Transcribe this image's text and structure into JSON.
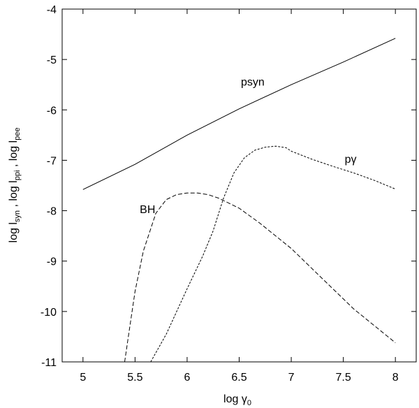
{
  "chart_data": {
    "type": "line",
    "title": "",
    "xlabel": {
      "base": "log γ",
      "sub": "0"
    },
    "ylabel": {
      "parts": [
        {
          "text": "log l",
          "sub": "syn"
        },
        {
          "text": " , log l",
          "sub": "ppi"
        },
        {
          "text": " , log l",
          "sub": "pee"
        }
      ]
    },
    "xlim": [
      4.8,
      8.2
    ],
    "ylim": [
      -11,
      -4
    ],
    "xticks": [
      5,
      5.5,
      6,
      6.5,
      7,
      7.5,
      8
    ],
    "xtick_labels": [
      "5",
      "5.5",
      "6",
      "6.5",
      "7",
      "7.5",
      "8"
    ],
    "yticks": [
      -11,
      -10,
      -9,
      -8,
      -7,
      -6,
      -5,
      -4
    ],
    "ytick_labels": [
      "-11",
      "-10",
      "-9",
      "-8",
      "-7",
      "-6",
      "-5",
      "-4"
    ],
    "grid": false,
    "legend": "none",
    "series": [
      {
        "name": "psyn",
        "style": "solid",
        "label_pos": {
          "x": 6.63,
          "y": -5.52
        },
        "x": [
          5.0,
          5.5,
          6.0,
          6.5,
          7.0,
          7.5,
          8.0
        ],
        "y": [
          -7.58,
          -7.08,
          -6.5,
          -5.98,
          -5.5,
          -5.05,
          -4.58
        ]
      },
      {
        "name": "pγ",
        "style": "dotted",
        "label_pos": {
          "x": 7.57,
          "y": -7.05
        },
        "x": [
          5.65,
          5.8,
          6.0,
          6.15,
          6.25,
          6.35,
          6.45,
          6.55,
          6.65,
          6.75,
          6.85,
          6.95,
          7.0,
          7.2,
          7.4,
          7.6,
          7.8,
          8.0
        ],
        "y": [
          -11.0,
          -10.45,
          -9.55,
          -8.9,
          -8.4,
          -7.75,
          -7.25,
          -6.95,
          -6.8,
          -6.74,
          -6.72,
          -6.75,
          -6.82,
          -6.98,
          -7.12,
          -7.25,
          -7.4,
          -7.57
        ]
      },
      {
        "name": "BH",
        "style": "dashed",
        "label_pos": {
          "x": 5.62,
          "y": -8.05
        },
        "x": [
          5.4,
          5.45,
          5.5,
          5.58,
          5.7,
          5.8,
          5.9,
          6.0,
          6.1,
          6.2,
          6.3,
          6.5,
          6.7,
          7.0,
          7.3,
          7.6,
          8.0
        ],
        "y": [
          -11.0,
          -10.3,
          -9.6,
          -8.8,
          -8.05,
          -7.78,
          -7.68,
          -7.65,
          -7.65,
          -7.68,
          -7.75,
          -7.95,
          -8.25,
          -8.75,
          -9.35,
          -9.95,
          -10.62
        ]
      }
    ]
  }
}
